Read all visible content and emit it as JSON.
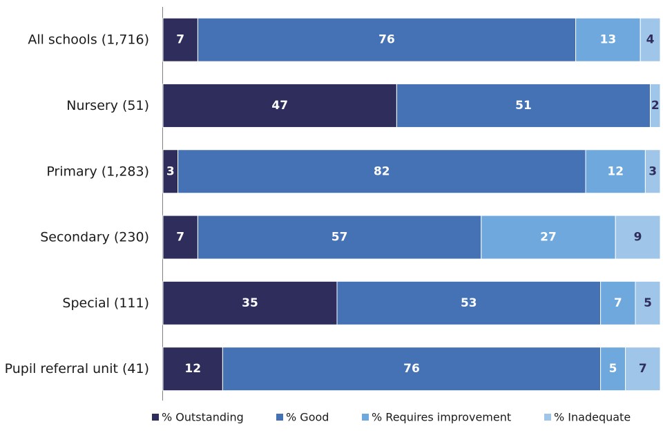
{
  "chart_data": {
    "type": "bar",
    "orientation": "horizontal",
    "stacked": true,
    "title": "",
    "xlabel": "",
    "ylabel": "",
    "xlim": [
      0,
      100
    ],
    "grid": false,
    "legend_position": "bottom",
    "categories": [
      "All schools (1,716)",
      "Nursery (51)",
      "Primary (1,283)",
      "Secondary (230)",
      "Special (111)",
      "Pupil referral unit (41)"
    ],
    "series": [
      {
        "name": "% Outstanding",
        "color": "#2e2d5b",
        "label_color": "#ffffff",
        "values": [
          7,
          47,
          3,
          7,
          35,
          12
        ]
      },
      {
        "name": "% Good",
        "color": "#4472b5",
        "label_color": "#ffffff",
        "values": [
          76,
          51,
          82,
          57,
          53,
          76
        ]
      },
      {
        "name": "% Requires improvement",
        "color": "#6fa8dc",
        "label_color": "#ffffff",
        "values": [
          13,
          0,
          12,
          27,
          7,
          5
        ]
      },
      {
        "name": "% Inadequate",
        "color": "#9fc5e8",
        "label_color": "#2e2d5b",
        "values": [
          4,
          2,
          3,
          9,
          5,
          7
        ]
      }
    ]
  }
}
